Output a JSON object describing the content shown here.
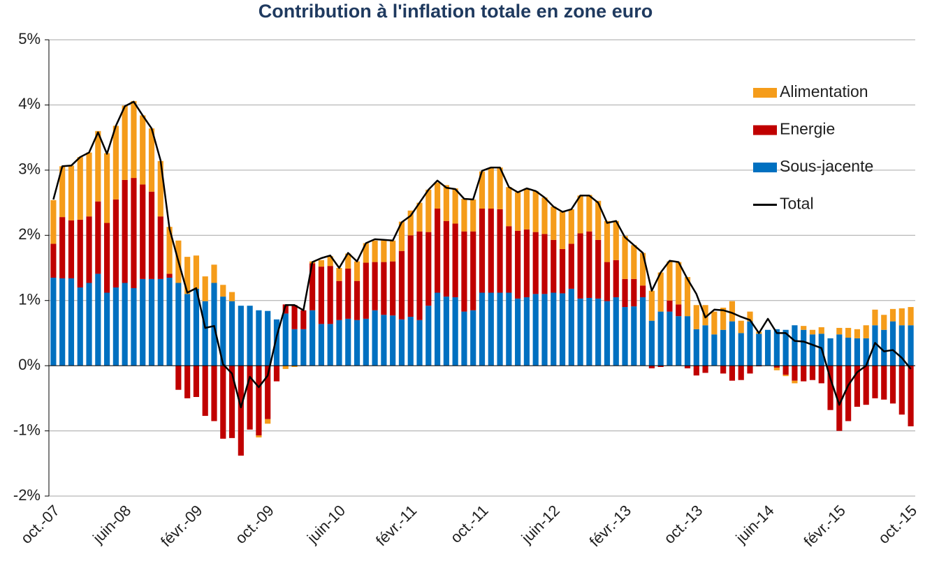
{
  "chart_data": {
    "type": "bar",
    "stacked": true,
    "title": "Contribution à l'inflation totale en zone euro",
    "categories": [
      "oct.-07",
      null,
      null,
      null,
      null,
      null,
      null,
      null,
      "juin-08",
      null,
      null,
      null,
      null,
      null,
      null,
      null,
      "févr.-09",
      null,
      null,
      null,
      null,
      null,
      null,
      null,
      "oct.-09",
      null,
      null,
      null,
      null,
      null,
      null,
      null,
      "juin-10",
      null,
      null,
      null,
      null,
      null,
      null,
      null,
      "févr.-11",
      null,
      null,
      null,
      null,
      null,
      null,
      null,
      "oct.-11",
      null,
      null,
      null,
      null,
      null,
      null,
      null,
      "juin-12",
      null,
      null,
      null,
      null,
      null,
      null,
      null,
      "févr.-13",
      null,
      null,
      null,
      null,
      null,
      null,
      null,
      "oct.-13",
      null,
      null,
      null,
      null,
      null,
      null,
      null,
      "juin-14",
      null,
      null,
      null,
      null,
      null,
      null,
      null,
      "févr.-15",
      null,
      null,
      null,
      null,
      null,
      null,
      null,
      "oct.-15"
    ],
    "series": [
      {
        "name": "Sous-jacente",
        "type": "bar",
        "color": "#0070c0",
        "values": [
          1.35,
          1.34,
          1.34,
          1.2,
          1.27,
          1.41,
          1.12,
          1.2,
          1.27,
          1.19,
          1.33,
          1.33,
          1.33,
          1.35,
          1.27,
          1.1,
          1.18,
          0.99,
          1.27,
          1.06,
          0.99,
          0.92,
          0.92,
          0.85,
          0.84,
          0.71,
          0.8,
          0.56,
          0.56,
          0.85,
          0.64,
          0.64,
          0.7,
          0.72,
          0.7,
          0.72,
          0.85,
          0.78,
          0.77,
          0.71,
          0.75,
          0.7,
          0.92,
          1.12,
          1.06,
          1.05,
          0.83,
          0.85,
          1.12,
          1.12,
          1.12,
          1.12,
          1.03,
          1.05,
          1.1,
          1.1,
          1.12,
          1.11,
          1.18,
          1.03,
          1.04,
          1.03,
          0.99,
          1.05,
          0.9,
          0.91,
          1.05,
          0.69,
          0.83,
          0.83,
          0.76,
          0.76,
          0.56,
          0.62,
          0.48,
          0.55,
          0.68,
          0.5,
          0.68,
          0.49,
          0.55,
          0.56,
          0.55,
          0.62,
          0.55,
          0.48,
          0.49,
          0.42,
          0.48,
          0.43,
          0.42,
          0.42,
          0.62,
          0.55,
          0.68,
          0.62,
          0.62
        ]
      },
      {
        "name": "Energie",
        "type": "bar",
        "color": "#c00000",
        "values": [
          0.52,
          0.94,
          0.89,
          1.04,
          1.02,
          1.11,
          1.07,
          1.35,
          1.58,
          1.69,
          1.45,
          1.34,
          0.96,
          0.06,
          -0.37,
          -0.5,
          -0.48,
          -0.77,
          -0.85,
          -1.12,
          -1.11,
          -1.38,
          -0.98,
          -1.07,
          -0.82,
          -0.24,
          0.14,
          0.37,
          0.29,
          0.72,
          0.88,
          0.89,
          0.6,
          0.77,
          0.6,
          0.86,
          0.74,
          0.81,
          0.83,
          1.05,
          1.25,
          1.36,
          1.13,
          1.29,
          1.16,
          1.13,
          1.23,
          1.21,
          1.29,
          1.29,
          1.28,
          1.02,
          1.04,
          1.04,
          0.95,
          0.92,
          0.81,
          0.68,
          0.69,
          1.0,
          1.02,
          0.9,
          0.6,
          0.57,
          0.43,
          0.42,
          0.18,
          -0.04,
          -0.02,
          0.17,
          0.18,
          -0.04,
          -0.15,
          -0.11,
          0,
          -0.12,
          -0.23,
          -0.22,
          -0.12,
          -0.01,
          0,
          -0.03,
          -0.14,
          -0.23,
          -0.24,
          -0.22,
          -0.27,
          -0.68,
          -1.0,
          -0.85,
          -0.63,
          -0.6,
          -0.5,
          -0.52,
          -0.58,
          -0.75,
          -0.93
        ]
      },
      {
        "name": "Alimentation",
        "type": "bar",
        "color": "#f59c1a",
        "values": [
          0.67,
          0.78,
          0.84,
          0.96,
          0.98,
          1.08,
          1.07,
          1.13,
          1.14,
          1.18,
          1.06,
          0.97,
          0.85,
          0.72,
          0.65,
          0.57,
          0.51,
          0.38,
          0.28,
          0.18,
          0.14,
          0,
          0,
          -0.03,
          -0.07,
          0,
          -0.05,
          -0.02,
          0,
          0.03,
          0.1,
          0.15,
          0.2,
          0.23,
          0.3,
          0.3,
          0.33,
          0.33,
          0.32,
          0.45,
          0.38,
          0.44,
          0.65,
          0.4,
          0.55,
          0.54,
          0.5,
          0.49,
          0.57,
          0.62,
          0.64,
          0.6,
          0.59,
          0.63,
          0.63,
          0.56,
          0.51,
          0.57,
          0.53,
          0.58,
          0.56,
          0.6,
          0.63,
          0.6,
          0.66,
          0.52,
          0.5,
          0.46,
          0.6,
          0.6,
          0.65,
          0.6,
          0.37,
          0.31,
          0.35,
          0.34,
          0.31,
          0.19,
          0.15,
          0.03,
          0,
          -0.04,
          -0.02,
          -0.04,
          0.06,
          0.07,
          0.1,
          0,
          0.1,
          0.15,
          0.14,
          0.2,
          0.24,
          0.23,
          0.19,
          0.26,
          0.28
        ]
      },
      {
        "name": "Total",
        "type": "line",
        "color": "#000000",
        "values": [
          2.55,
          3.06,
          3.07,
          3.2,
          3.27,
          3.58,
          3.25,
          3.68,
          3.98,
          4.05,
          3.84,
          3.64,
          3.15,
          2.1,
          1.6,
          1.12,
          1.19,
          0.58,
          0.61,
          0.02,
          -0.12,
          -0.64,
          -0.17,
          -0.33,
          -0.15,
          0.45,
          0.93,
          0.93,
          0.85,
          1.59,
          1.65,
          1.69,
          1.5,
          1.73,
          1.6,
          1.88,
          1.94,
          1.93,
          1.92,
          2.2,
          2.3,
          2.5,
          2.7,
          2.84,
          2.73,
          2.71,
          2.56,
          2.55,
          2.99,
          3.04,
          3.04,
          2.74,
          2.66,
          2.72,
          2.68,
          2.58,
          2.44,
          2.36,
          2.4,
          2.61,
          2.61,
          2.5,
          2.19,
          2.22,
          1.97,
          1.85,
          1.73,
          1.15,
          1.43,
          1.61,
          1.59,
          1.33,
          1.1,
          0.74,
          0.86,
          0.85,
          0.81,
          0.75,
          0.7,
          0.5,
          0.72,
          0.5,
          0.5,
          0.38,
          0.37,
          0.32,
          0.27,
          -0.2,
          -0.6,
          -0.3,
          -0.1,
          0,
          0.35,
          0.22,
          0.24,
          0.12,
          -0.05
        ]
      }
    ],
    "ylim": [
      -2,
      5
    ],
    "yticks": [
      {
        "value": -2,
        "label": "-2%"
      },
      {
        "value": -1,
        "label": "-1%"
      },
      {
        "value": 0,
        "label": "0%"
      },
      {
        "value": 1,
        "label": "1%"
      },
      {
        "value": 2,
        "label": "2%"
      },
      {
        "value": 3,
        "label": "3%"
      },
      {
        "value": 4,
        "label": "4%"
      },
      {
        "value": 5,
        "label": "5%"
      }
    ],
    "grid": true,
    "legend": "top-right"
  }
}
